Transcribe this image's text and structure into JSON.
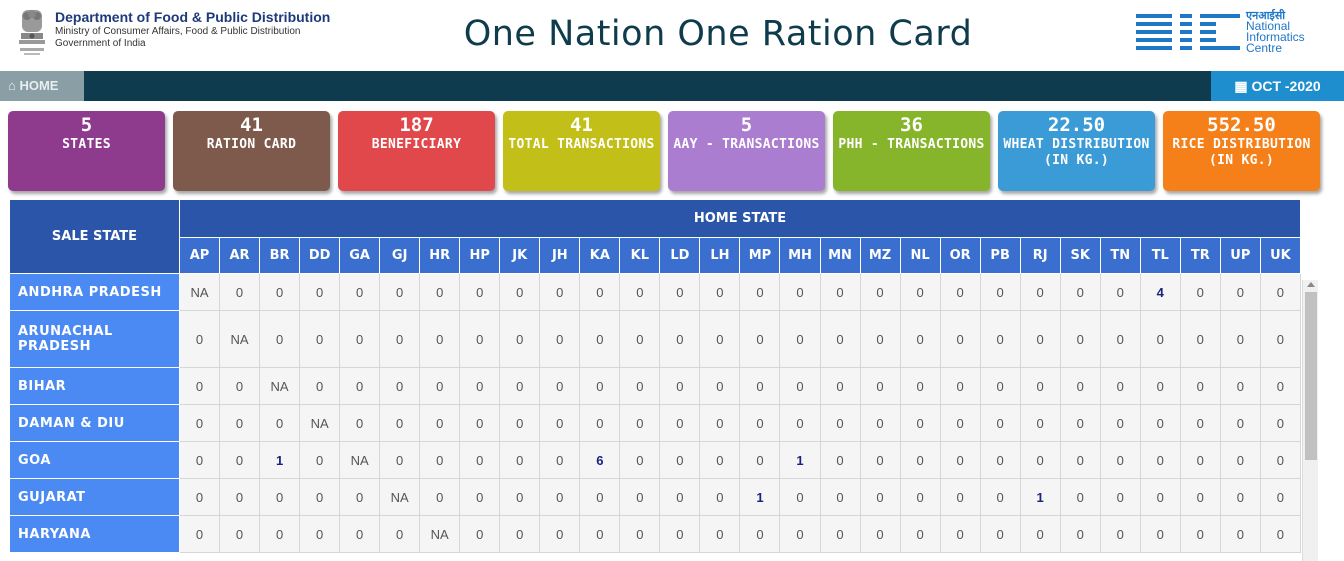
{
  "header": {
    "dept_title": "Department of Food & Public Distribution",
    "dept_sub1": "Ministry of Consumer Affairs, Food & Public Distribution",
    "dept_sub2": "Government of India",
    "title": "One Nation One Ration Card",
    "nic_hindi": "एनआईसी",
    "nic_line1": "National",
    "nic_line2": "Informatics",
    "nic_line3": "Centre"
  },
  "nav": {
    "home_label": "HOME",
    "date_label": "OCT -2020"
  },
  "cards": [
    {
      "value": "5",
      "label": "STATES",
      "color": "#8e3b8e"
    },
    {
      "value": "41",
      "label": "RATION CARD",
      "color": "#7d5a4b"
    },
    {
      "value": "187",
      "label": "BENEFICIARY",
      "color": "#e0484b"
    },
    {
      "value": "41",
      "label": "TOTAL TRANSACTIONS",
      "color": "#c2bf18"
    },
    {
      "value": "5",
      "label": "AAY - TRANSACTIONS",
      "color": "#aa7dd0"
    },
    {
      "value": "36",
      "label": "PHH - TRANSACTIONS",
      "color": "#86b52b"
    },
    {
      "value": "22.50",
      "label": "WHEAT DISTRIBUTION (IN KG.)",
      "color": "#3b9bd6"
    },
    {
      "value": "552.50",
      "label": "RICE DISTRIBUTION (IN KG.)",
      "color": "#f57f18"
    }
  ],
  "table": {
    "sale_state_header": "SALE STATE",
    "home_state_header": "HOME STATE",
    "codes": [
      "AP",
      "AR",
      "BR",
      "DD",
      "GA",
      "GJ",
      "HR",
      "HP",
      "JK",
      "JH",
      "KA",
      "KL",
      "LD",
      "LH",
      "MP",
      "MH",
      "MN",
      "MZ",
      "NL",
      "OR",
      "PB",
      "RJ",
      "SK",
      "TN",
      "TL",
      "TR",
      "UP",
      "UK"
    ],
    "rows": [
      {
        "state": "ANDHRA PRADESH",
        "values": [
          "NA",
          "0",
          "0",
          "0",
          "0",
          "0",
          "0",
          "0",
          "0",
          "0",
          "0",
          "0",
          "0",
          "0",
          "0",
          "0",
          "0",
          "0",
          "0",
          "0",
          "0",
          "0",
          "0",
          "0",
          "4",
          "0",
          "0",
          "0"
        ]
      },
      {
        "state": "ARUNACHAL PRADESH",
        "values": [
          "0",
          "NA",
          "0",
          "0",
          "0",
          "0",
          "0",
          "0",
          "0",
          "0",
          "0",
          "0",
          "0",
          "0",
          "0",
          "0",
          "0",
          "0",
          "0",
          "0",
          "0",
          "0",
          "0",
          "0",
          "0",
          "0",
          "0",
          "0"
        ]
      },
      {
        "state": "BIHAR",
        "values": [
          "0",
          "0",
          "NA",
          "0",
          "0",
          "0",
          "0",
          "0",
          "0",
          "0",
          "0",
          "0",
          "0",
          "0",
          "0",
          "0",
          "0",
          "0",
          "0",
          "0",
          "0",
          "0",
          "0",
          "0",
          "0",
          "0",
          "0",
          "0"
        ]
      },
      {
        "state": "DAMAN & DIU",
        "values": [
          "0",
          "0",
          "0",
          "NA",
          "0",
          "0",
          "0",
          "0",
          "0",
          "0",
          "0",
          "0",
          "0",
          "0",
          "0",
          "0",
          "0",
          "0",
          "0",
          "0",
          "0",
          "0",
          "0",
          "0",
          "0",
          "0",
          "0",
          "0"
        ]
      },
      {
        "state": "GOA",
        "values": [
          "0",
          "0",
          "1",
          "0",
          "NA",
          "0",
          "0",
          "0",
          "0",
          "0",
          "6",
          "0",
          "0",
          "0",
          "0",
          "1",
          "0",
          "0",
          "0",
          "0",
          "0",
          "0",
          "0",
          "0",
          "0",
          "0",
          "0",
          "0"
        ]
      },
      {
        "state": "GUJARAT",
        "values": [
          "0",
          "0",
          "0",
          "0",
          "0",
          "NA",
          "0",
          "0",
          "0",
          "0",
          "0",
          "0",
          "0",
          "0",
          "1",
          "0",
          "0",
          "0",
          "0",
          "0",
          "0",
          "1",
          "0",
          "0",
          "0",
          "0",
          "0",
          "0"
        ]
      },
      {
        "state": "HARYANA",
        "values": [
          "0",
          "0",
          "0",
          "0",
          "0",
          "0",
          "NA",
          "0",
          "0",
          "0",
          "0",
          "0",
          "0",
          "0",
          "0",
          "0",
          "0",
          "0",
          "0",
          "0",
          "0",
          "0",
          "0",
          "0",
          "0",
          "0",
          "0",
          "0"
        ]
      }
    ]
  }
}
